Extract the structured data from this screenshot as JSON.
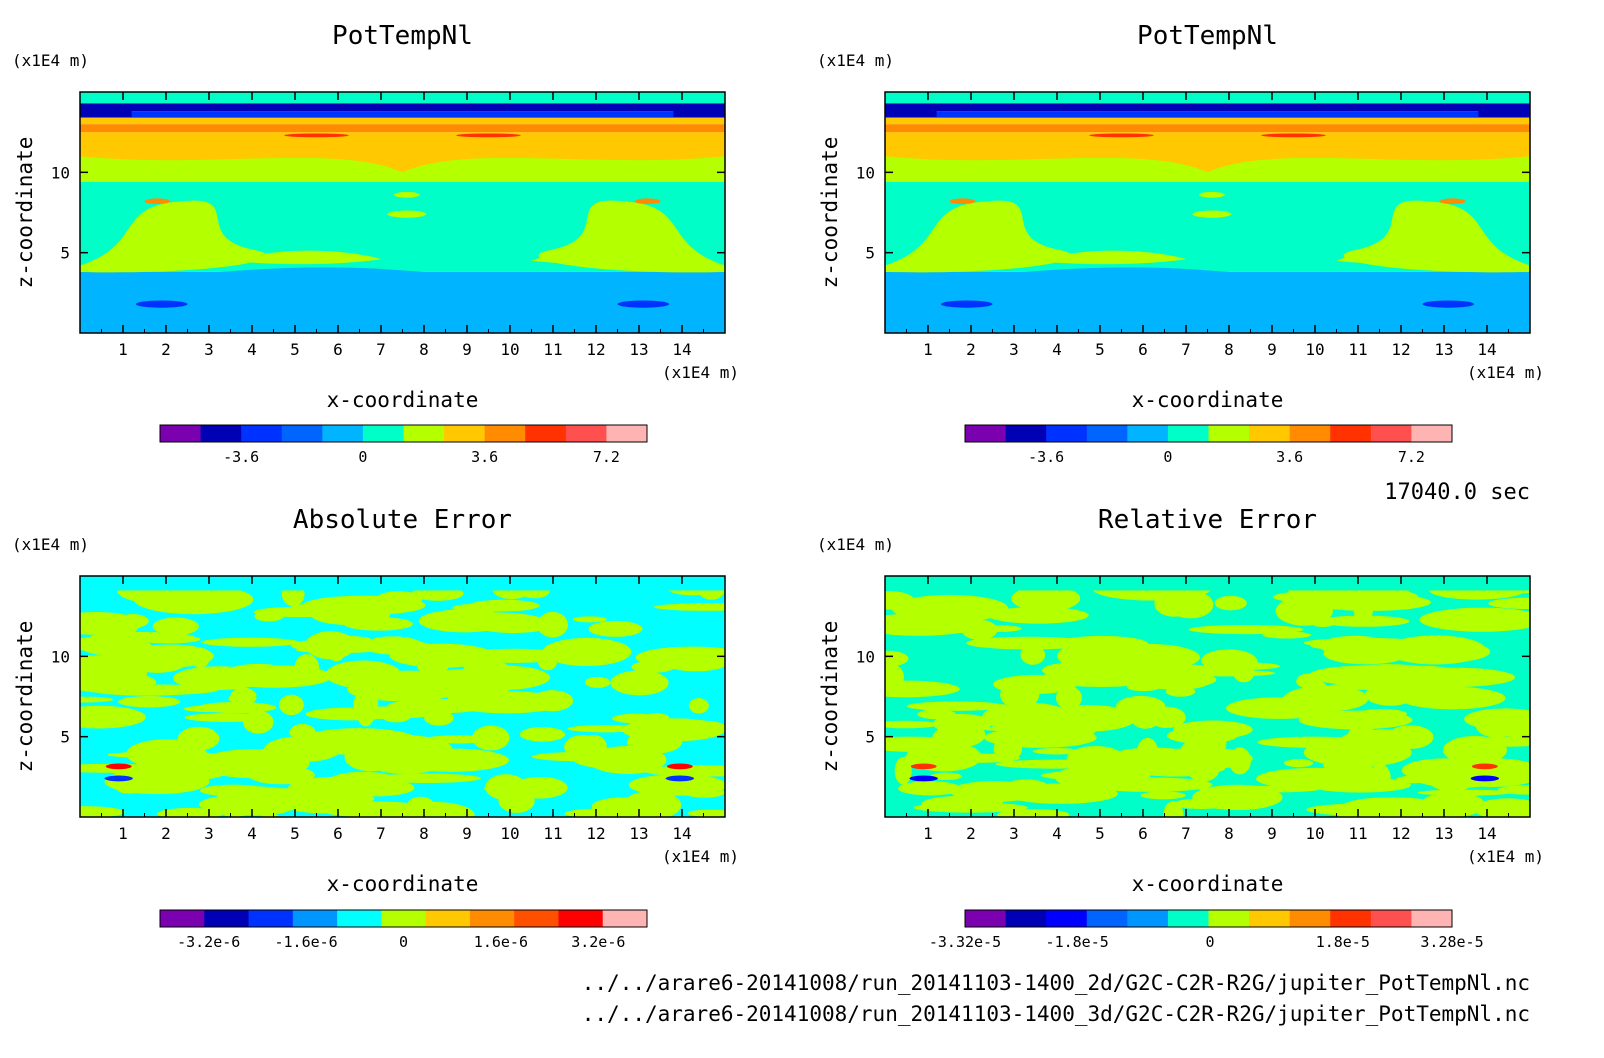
{
  "time_label": "17040.0 sec",
  "files": [
    "../../arare6-20141008/run_20141103-1400_2d/G2C-C2R-R2G/jupiter_PotTempNl.nc",
    "../../arare6-20141008/run_20141103-1400_3d/G2C-C2R-R2G/jupiter_PotTempNl.nc"
  ],
  "colors": {
    "pot": [
      "#7a00b0",
      "#0000b4",
      "#0032ff",
      "#0064ff",
      "#00b4ff",
      "#00ffc8",
      "#b4ff00",
      "#ffc800",
      "#ff8c00",
      "#ff3200",
      "#ff5050",
      "#ffb4b4"
    ],
    "err": [
      "#7a00b0",
      "#0000b4",
      "#0032ff",
      "#0096ff",
      "#00ffff",
      "#b4ff00",
      "#ffc800",
      "#ff8c00",
      "#ff5000",
      "#ff0000",
      "#ffb4b4"
    ],
    "rel": [
      "#7a00b0",
      "#0000b4",
      "#0000ff",
      "#0064ff",
      "#0096ff",
      "#00ffc8",
      "#b4ff00",
      "#ffc800",
      "#ff8c00",
      "#ff3200",
      "#ff5050",
      "#ffb4b4"
    ]
  },
  "chart_data": [
    {
      "type": "heatmap",
      "title": "PotTempNl",
      "xlabel": "x-coordinate",
      "ylabel": "z-coordinate",
      "x_unit": "(x1E4 m)",
      "y_unit": "(x1E4 m)",
      "x_ticks": [
        "1",
        "2",
        "3",
        "4",
        "5",
        "6",
        "7",
        "8",
        "9",
        "10",
        "11",
        "12",
        "13",
        "14"
      ],
      "y_ticks": [
        "5",
        "10"
      ],
      "xlim": [
        0,
        15
      ],
      "ylim": [
        0,
        15
      ],
      "colorbar_labels": [
        "-3.6",
        "0",
        "3.6",
        "7.2"
      ],
      "colorbar_range": [
        -6,
        8.4
      ]
    },
    {
      "type": "heatmap",
      "title": "PotTempNl",
      "xlabel": "x-coordinate",
      "ylabel": "z-coordinate",
      "x_unit": "(x1E4 m)",
      "y_unit": "(x1E4 m)",
      "x_ticks": [
        "1",
        "2",
        "3",
        "4",
        "5",
        "6",
        "7",
        "8",
        "9",
        "10",
        "11",
        "12",
        "13",
        "14"
      ],
      "y_ticks": [
        "5",
        "10"
      ],
      "xlim": [
        0,
        15
      ],
      "ylim": [
        0,
        15
      ],
      "colorbar_labels": [
        "-3.6",
        "0",
        "3.6",
        "7.2"
      ],
      "colorbar_range": [
        -6,
        8.4
      ]
    },
    {
      "type": "heatmap",
      "title": "Absolute Error",
      "xlabel": "x-coordinate",
      "ylabel": "z-coordinate",
      "x_unit": "(x1E4 m)",
      "y_unit": "(x1E4 m)",
      "x_ticks": [
        "1",
        "2",
        "3",
        "4",
        "5",
        "6",
        "7",
        "8",
        "9",
        "10",
        "11",
        "12",
        "13",
        "14"
      ],
      "y_ticks": [
        "5",
        "10"
      ],
      "xlim": [
        0,
        15
      ],
      "ylim": [
        0,
        15
      ],
      "colorbar_labels": [
        "-3.2e-6",
        "-1.6e-6",
        "0",
        "1.6e-6",
        "3.2e-6"
      ],
      "colorbar_range": [
        -4e-06,
        4e-06
      ]
    },
    {
      "type": "heatmap",
      "title": "Relative Error",
      "xlabel": "x-coordinate",
      "ylabel": "z-coordinate",
      "x_unit": "(x1E4 m)",
      "y_unit": "(x1E4 m)",
      "x_ticks": [
        "1",
        "2",
        "3",
        "4",
        "5",
        "6",
        "7",
        "8",
        "9",
        "10",
        "11",
        "12",
        "13",
        "14"
      ],
      "y_ticks": [
        "5",
        "10"
      ],
      "xlim": [
        0,
        15
      ],
      "ylim": [
        0,
        15
      ],
      "colorbar_labels": [
        "-3.32e-5",
        "-1.8e-5",
        "0",
        "1.8e-5",
        "3.28e-5"
      ],
      "colorbar_range": [
        -3.32e-05,
        3.28e-05
      ]
    }
  ]
}
